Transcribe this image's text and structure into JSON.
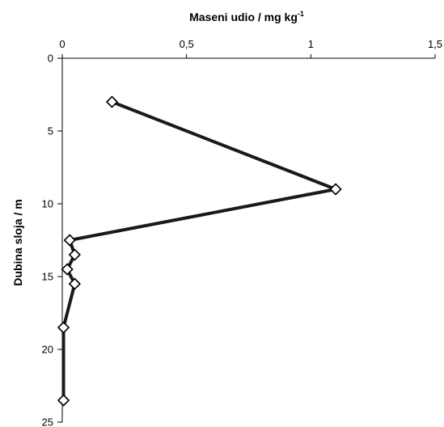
{
  "chart_data": {
    "type": "line",
    "title": "",
    "xlabel": "Maseni udio / mg kg",
    "xlabel_superscript": "-1",
    "ylabel": "Dubina sloja / m",
    "x_axis_position": "top",
    "y_axis_inverted": true,
    "xlim": [
      0,
      1.5
    ],
    "ylim": [
      0,
      25
    ],
    "xticks": [
      0,
      0.5,
      1,
      1.5
    ],
    "xtick_labels": [
      "0",
      "0,5",
      "1",
      "1,5"
    ],
    "yticks": [
      0,
      5,
      10,
      15,
      20,
      25
    ],
    "ytick_labels": [
      "0",
      "5",
      "10",
      "15",
      "20",
      "25"
    ],
    "grid": false,
    "marker": "diamond-open",
    "line_color": "#1a1a1a",
    "series": [
      {
        "x": [
          0.2,
          1.1,
          0.03,
          0.05,
          0.02,
          0.05,
          0.005,
          0.005
        ],
        "y": [
          3,
          9,
          12.5,
          13.5,
          14.5,
          15.5,
          18.5,
          23.5
        ]
      }
    ]
  }
}
